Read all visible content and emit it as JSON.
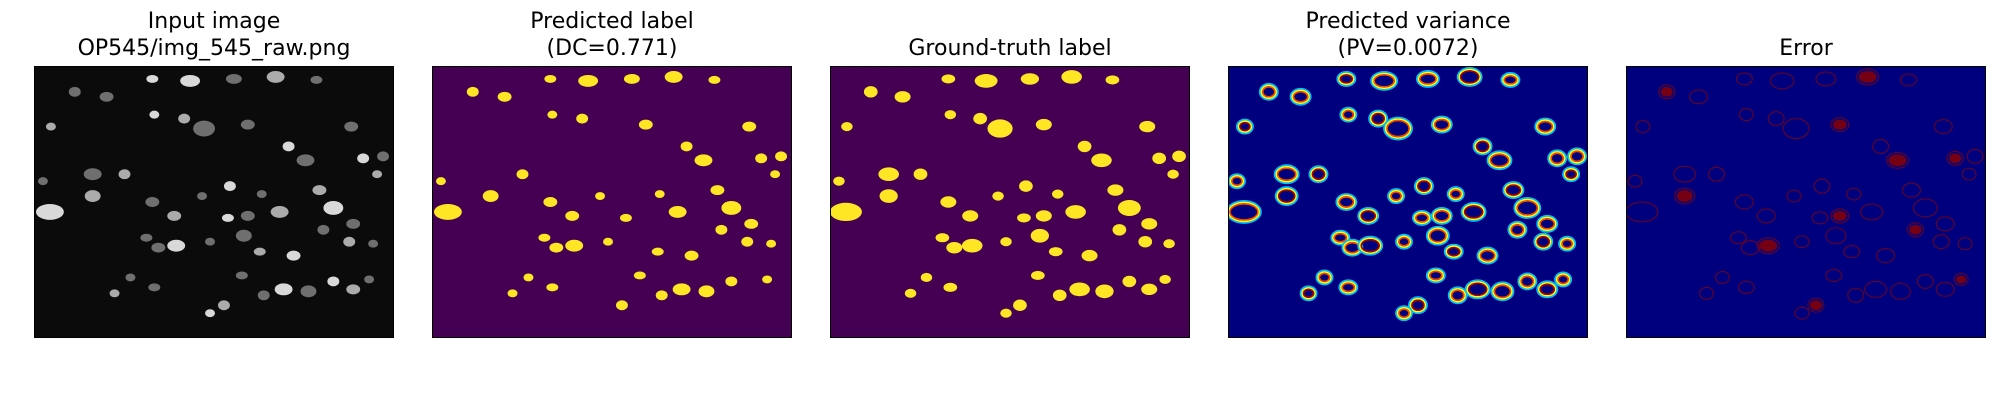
{
  "panels": [
    {
      "title_lines": [
        "Input image",
        "OP545/img_545_raw.png"
      ],
      "kind": "raw"
    },
    {
      "title_lines": [
        "Predicted label",
        "(DC=0.771)"
      ],
      "kind": "pred"
    },
    {
      "title_lines": [
        "Ground-truth label"
      ],
      "kind": "gt"
    },
    {
      "title_lines": [
        "Predicted variance",
        "(PV=0.0072)"
      ],
      "kind": "var"
    },
    {
      "title_lines": [
        "Error"
      ],
      "kind": "err"
    }
  ],
  "colors": {
    "raw_background": "#0b0b0b",
    "label_background": "#440154",
    "label_foreground": "#fde725",
    "jet_background": "#00007f",
    "error_foreground": "#8b0000"
  }
}
